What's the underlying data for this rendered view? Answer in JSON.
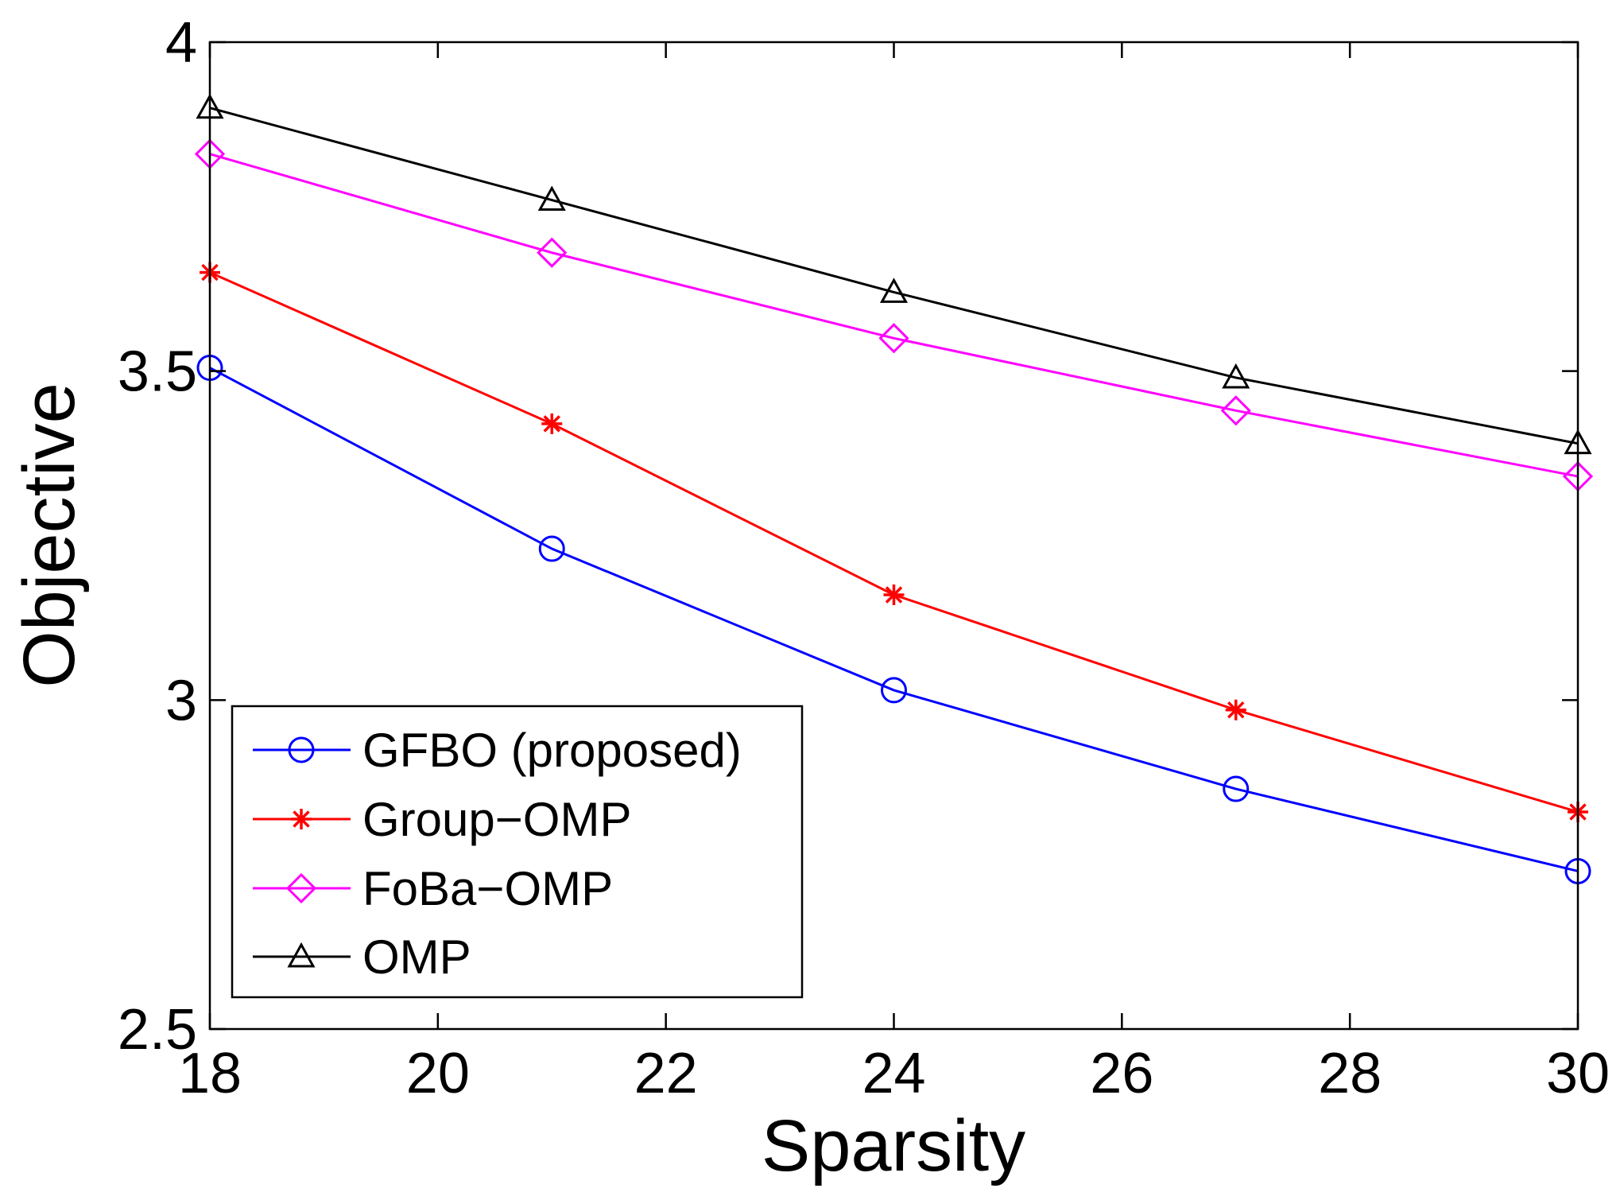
{
  "chart_data": {
    "type": "line",
    "xlabel": "Sparsity",
    "ylabel": "Objective",
    "xlim": [
      18,
      30
    ],
    "ylim": [
      2.5,
      4
    ],
    "xticks": [
      "18",
      "20",
      "22",
      "24",
      "26",
      "28",
      "30"
    ],
    "yticks": [
      "2.5",
      "3",
      "3.5",
      "4"
    ],
    "x": [
      18,
      21,
      24,
      27,
      30
    ],
    "grid": false,
    "legend_position": "bottom-left",
    "series": [
      {
        "name": "GFBO (proposed)",
        "marker": "circle",
        "color": "#0000ff",
        "values": [
          3.505,
          3.23,
          3.015,
          2.865,
          2.74
        ]
      },
      {
        "name": "Group−OMP",
        "marker": "star",
        "color": "#ff0000",
        "values": [
          3.65,
          3.42,
          3.16,
          2.985,
          2.83
        ]
      },
      {
        "name": "FoBa−OMP",
        "marker": "diamond",
        "color": "#ff00ff",
        "values": [
          3.83,
          3.68,
          3.55,
          3.44,
          3.34
        ]
      },
      {
        "name": "OMP",
        "marker": "triangle",
        "color": "#000000",
        "values": [
          3.9,
          3.76,
          3.62,
          3.49,
          3.39
        ]
      }
    ]
  }
}
